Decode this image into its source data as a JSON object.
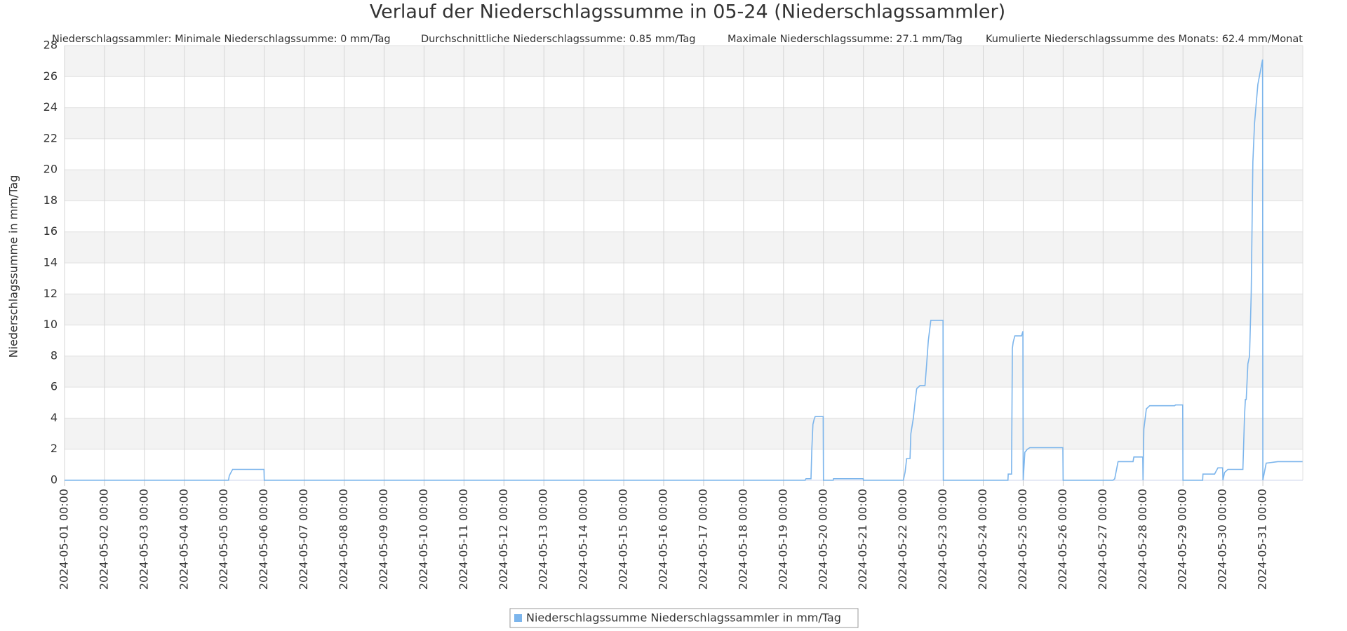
{
  "chart_data": {
    "type": "line",
    "title": "Verlauf der Niederschlagssumme in 05-24 (Niederschlagssammler)",
    "stats": [
      "Niederschlagssammler: Minimale Niederschlagssumme: 0 mm/Tag",
      "Durchschnittliche Niederschlagssumme: 0.85 mm/Tag",
      "Maximale Niederschlagssumme: 27.1 mm/Tag",
      "Kumulierte Niederschlagssumme des Monats: 62.4 mm/Monat"
    ],
    "y_label": "Niederschlagssumme in mm/Tag",
    "x": [
      "2024-05-01 00:00",
      "2024-05-05 02:30",
      "2024-05-05 03:00",
      "2024-05-05 04:00",
      "2024-05-05 05:00",
      "2024-05-05 23:50",
      "2024-05-06 00:00",
      "2024-05-19 13:00",
      "2024-05-19 13:30",
      "2024-05-19 16:30",
      "2024-05-19 17:00",
      "2024-05-19 17:40",
      "2024-05-19 18:20",
      "2024-05-19 19:00",
      "2024-05-19 23:50",
      "2024-05-20 00:00",
      "2024-05-20 05:50",
      "2024-05-20 06:00",
      "2024-05-20 23:50",
      "2024-05-21 00:00",
      "2024-05-22 00:00",
      "2024-05-22 01:00",
      "2024-05-22 02:00",
      "2024-05-22 04:00",
      "2024-05-22 04:30",
      "2024-05-22 06:00",
      "2024-05-22 07:00",
      "2024-05-22 08:00",
      "2024-05-22 10:00",
      "2024-05-22 13:00",
      "2024-05-22 14:00",
      "2024-05-22 15:00",
      "2024-05-22 16:30",
      "2024-05-22 23:50",
      "2024-05-23 00:00",
      "2024-05-24 14:50",
      "2024-05-24 15:00",
      "2024-05-24 17:00",
      "2024-05-24 17:30",
      "2024-05-24 18:00",
      "2024-05-24 19:00",
      "2024-05-24 23:00",
      "2024-05-24 23:50",
      "2024-05-25 00:00",
      "2024-05-25 01:00",
      "2024-05-25 02:30",
      "2024-05-25 04:00",
      "2024-05-25 23:50",
      "2024-05-26 00:00",
      "2024-05-27 06:00",
      "2024-05-27 07:00",
      "2024-05-27 09:00",
      "2024-05-27 18:00",
      "2024-05-27 18:30",
      "2024-05-27 23:50",
      "2024-05-28 00:00",
      "2024-05-28 00:30",
      "2024-05-28 02:00",
      "2024-05-28 04:00",
      "2024-05-28 19:00",
      "2024-05-28 19:30",
      "2024-05-28 23:50",
      "2024-05-29 00:00",
      "2024-05-29 11:50",
      "2024-05-29 12:00",
      "2024-05-29 19:00",
      "2024-05-29 21:00",
      "2024-05-29 23:50",
      "2024-05-30 00:00",
      "2024-05-30 01:00",
      "2024-05-30 03:00",
      "2024-05-30 12:00",
      "2024-05-30 13:00",
      "2024-05-30 13:30",
      "2024-05-30 14:00",
      "2024-05-30 15:00",
      "2024-05-30 16:00",
      "2024-05-30 17:00",
      "2024-05-30 18:00",
      "2024-05-30 19:00",
      "2024-05-30 21:00",
      "2024-05-30 23:50",
      "2024-05-31 00:00",
      "2024-05-31 02:00",
      "2024-05-31 09:00",
      "2024-05-31 23:50"
    ],
    "series": [
      {
        "name": "Niederschlagssumme Niederschlagssammler in mm/Tag",
        "color": "#7cb5ec",
        "values": [
          0,
          0,
          0.3,
          0.5,
          0.7,
          0.7,
          0,
          0,
          0.1,
          0.1,
          2,
          3.6,
          3.9,
          4.1,
          4.1,
          0,
          0,
          0.1,
          0.1,
          0,
          0,
          0.5,
          1.4,
          1.4,
          3,
          4,
          5,
          5.9,
          6.1,
          6.1,
          7.5,
          9,
          10.3,
          10.3,
          0,
          0,
          0.4,
          0.4,
          8.5,
          8.9,
          9.3,
          9.3,
          9.6,
          0,
          1.8,
          2,
          2.1,
          2.1,
          0,
          0,
          0.1,
          1.2,
          1.2,
          1.5,
          1.5,
          0,
          3.3,
          4.6,
          4.8,
          4.8,
          4.85,
          4.85,
          0,
          0,
          0.4,
          0.4,
          0.8,
          0.8,
          0,
          0.5,
          0.7,
          0.7,
          4.2,
          5.2,
          5.2,
          7.5,
          8,
          12,
          20.5,
          23,
          25.5,
          27.1,
          0,
          1.1,
          1.2,
          1.2
        ]
      }
    ],
    "xlim": [
      "2024-05-01 00:00",
      "2024-06-01 00:00"
    ],
    "xticks": [
      "2024-05-01 00:00",
      "2024-05-02 00:00",
      "2024-05-03 00:00",
      "2024-05-04 00:00",
      "2024-05-05 00:00",
      "2024-05-06 00:00",
      "2024-05-07 00:00",
      "2024-05-08 00:00",
      "2024-05-09 00:00",
      "2024-05-10 00:00",
      "2024-05-11 00:00",
      "2024-05-12 00:00",
      "2024-05-13 00:00",
      "2024-05-14 00:00",
      "2024-05-15 00:00",
      "2024-05-16 00:00",
      "2024-05-17 00:00",
      "2024-05-18 00:00",
      "2024-05-19 00:00",
      "2024-05-20 00:00",
      "2024-05-21 00:00",
      "2024-05-22 00:00",
      "2024-05-23 00:00",
      "2024-05-24 00:00",
      "2024-05-25 00:00",
      "2024-05-26 00:00",
      "2024-05-27 00:00",
      "2024-05-28 00:00",
      "2024-05-29 00:00",
      "2024-05-30 00:00",
      "2024-05-31 00:00"
    ],
    "ylim": [
      0,
      28
    ],
    "yticks": [
      0,
      2,
      4,
      6,
      8,
      10,
      12,
      14,
      16,
      18,
      20,
      22,
      24,
      26,
      28
    ],
    "grid": true
  }
}
